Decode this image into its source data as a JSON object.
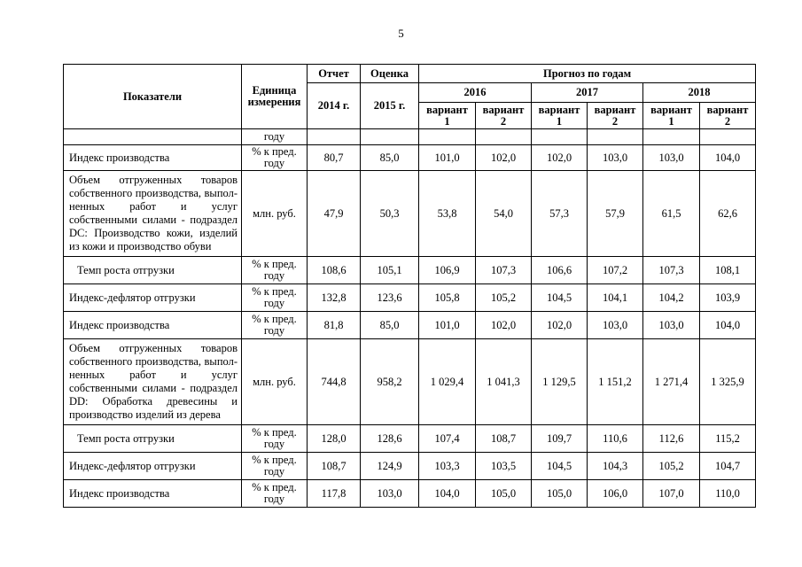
{
  "page": {
    "number": "5"
  },
  "table": {
    "header": {
      "indicators": "Показатели",
      "unit": "Единица\nизмерения",
      "report": "Отчет",
      "estimate": "Оценка",
      "forecast": "Прогноз по годам",
      "report_year": "2014 г.",
      "estimate_year": "2015 г.",
      "years": [
        "2016",
        "2017",
        "2018"
      ],
      "variant1": "вариант\n1",
      "variant2": "вариант\n2"
    },
    "rows": [
      {
        "indicator_lines": [],
        "unit": "году",
        "values": [
          "",
          "",
          "",
          "",
          "",
          "",
          "",
          ""
        ]
      },
      {
        "indicator_lines": [
          "Индекс производства"
        ],
        "unit": "% к пред.\nгоду",
        "values": [
          "80,7",
          "85,0",
          "101,0",
          "102,0",
          "102,0",
          "103,0",
          "103,0",
          "104,0"
        ]
      },
      {
        "indicator_lines": [
          "Объем отгруженных товаров",
          "собственного производства, выпол-",
          "ненных работ и услуг",
          "собственными силами - подраздел",
          "DC: Производство кожи, изделий",
          "из кожи и производство обуви"
        ],
        "justify": true,
        "unit": "млн. руб.",
        "values": [
          "47,9",
          "50,3",
          "53,8",
          "54,0",
          "57,3",
          "57,9",
          "61,5",
          "62,6"
        ]
      },
      {
        "indicator_lines": [
          "Темп роста отгрузки"
        ],
        "indent": true,
        "unit": "% к пред.\nгоду",
        "values": [
          "108,6",
          "105,1",
          "106,9",
          "107,3",
          "106,6",
          "107,2",
          "107,3",
          "108,1"
        ]
      },
      {
        "indicator_lines": [
          "Индекс-дефлятор отгрузки"
        ],
        "unit": "% к пред.\nгоду",
        "values": [
          "132,8",
          "123,6",
          "105,8",
          "105,2",
          "104,5",
          "104,1",
          "104,2",
          "103,9"
        ]
      },
      {
        "indicator_lines": [
          "Индекс производства"
        ],
        "unit": "% к пред.\nгоду",
        "values": [
          "81,8",
          "85,0",
          "101,0",
          "102,0",
          "102,0",
          "103,0",
          "103,0",
          "104,0"
        ]
      },
      {
        "indicator_lines": [
          "Объем отгруженных товаров",
          "собственного производства, выпол-",
          "ненных работ и услуг",
          "собственными силами - подраздел",
          "DD: Обработка древесины и",
          "производство изделий из дерева"
        ],
        "justify": true,
        "unit": "млн. руб.",
        "values": [
          "744,8",
          "958,2",
          "1 029,4",
          "1 041,3",
          "1 129,5",
          "1 151,2",
          "1 271,4",
          "1 325,9"
        ]
      },
      {
        "indicator_lines": [
          "Темп роста отгрузки"
        ],
        "indent": true,
        "unit": "% к пред.\nгоду",
        "values": [
          "128,0",
          "128,6",
          "107,4",
          "108,7",
          "109,7",
          "110,6",
          "112,6",
          "115,2"
        ]
      },
      {
        "indicator_lines": [
          "Индекс-дефлятор отгрузки"
        ],
        "unit": "% к пред.\nгоду",
        "values": [
          "108,7",
          "124,9",
          "103,3",
          "103,5",
          "104,5",
          "104,3",
          "105,2",
          "104,7"
        ]
      },
      {
        "indicator_lines": [
          "Индекс производства"
        ],
        "unit": "% к пред.\nгоду",
        "values": [
          "117,8",
          "103,0",
          "104,0",
          "105,0",
          "105,0",
          "106,0",
          "107,0",
          "110,0"
        ]
      }
    ]
  }
}
